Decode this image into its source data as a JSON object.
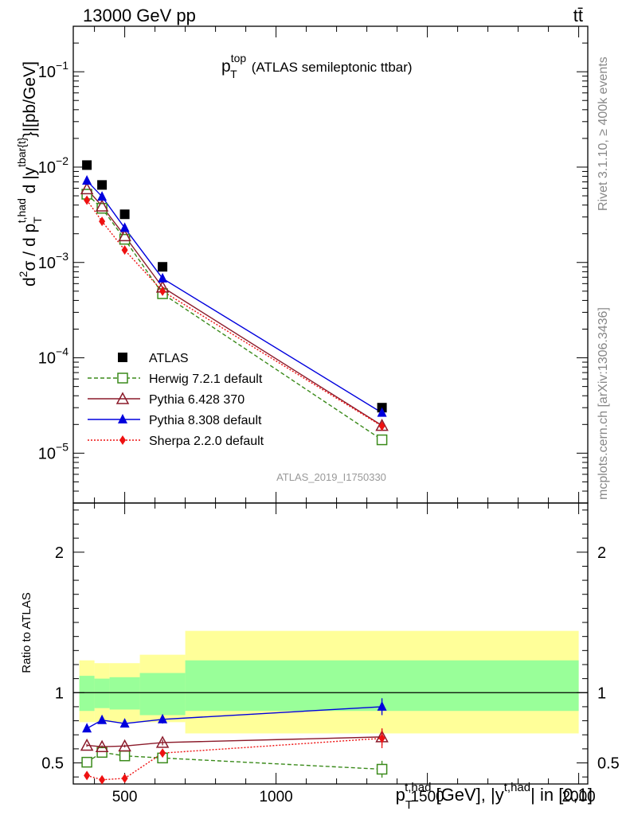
{
  "header": {
    "energy": "13000 GeV pp",
    "process": "tt̄"
  },
  "side_text": {
    "rivet": "Rivet 3.1.10, ≥ 400k events",
    "mcplots": "mcplots.cern.ch [arXiv:1306.3436]"
  },
  "chart_data": [
    {
      "type": "scatter",
      "title_main": "p",
      "title_sup": "top",
      "title_sub": "T",
      "title_rest": "(ATLAS semileptonic ttbar)",
      "ylabel": "d²σ / d p_T^{t,had} d |y^{tbar{t}}| [pb/GeV]",
      "ylabel_parts": [
        "d",
        "2",
        "σ  /  d p",
        "T",
        "t,had",
        " d |y",
        "tbar{t}",
        "}|[pb/GeV]"
      ],
      "yscale": "log",
      "ylim": [
        3e-06,
        0.3
      ],
      "xlim": [
        330,
        2030
      ],
      "ytick_labels": [
        {
          "base": "10",
          "exp": "−1",
          "value": 0.1
        },
        {
          "base": "10",
          "exp": "−2",
          "value": 0.01
        },
        {
          "base": "10",
          "exp": "−3",
          "value": 0.001
        },
        {
          "base": "10",
          "exp": "−4",
          "value": 0.0001
        },
        {
          "base": "10",
          "exp": "−5",
          "value": 1e-05
        }
      ],
      "analysis_id": "ATLAS_2019_I1750330",
      "legend_position": "bottom-left",
      "series": [
        {
          "name": "ATLAS",
          "color": "#000000",
          "marker": "square-filled",
          "line": "none",
          "x": [
            375,
            425,
            500,
            625,
            1350
          ],
          "y": [
            0.0105,
            0.0065,
            0.0032,
            0.0009,
            3e-05
          ]
        },
        {
          "name": "Herwig 7.2.1 default",
          "color": "#3a8a1a",
          "marker": "square-open",
          "line": "dashed",
          "x": [
            375,
            425,
            500,
            625,
            1350
          ],
          "y": [
            0.0052,
            0.0037,
            0.00175,
            0.00047,
            1.38e-05
          ]
        },
        {
          "name": "Pythia 6.428 370",
          "color": "#8b1a2a",
          "marker": "triangle-open",
          "line": "solid",
          "x": [
            375,
            425,
            500,
            625,
            1350
          ],
          "y": [
            0.0059,
            0.0039,
            0.0019,
            0.00055,
            1.95e-05
          ]
        },
        {
          "name": "Pythia 8.308 default",
          "color": "#0000dd",
          "marker": "triangle-filled",
          "line": "solid",
          "x": [
            375,
            425,
            500,
            625,
            1350
          ],
          "y": [
            0.0072,
            0.0049,
            0.0023,
            0.00068,
            2.65e-05
          ]
        },
        {
          "name": "Sherpa 2.2.0 default",
          "color": "#ee1111",
          "marker": "diamond-filled",
          "line": "dotted",
          "x": [
            375,
            425,
            500,
            625,
            1350
          ],
          "y": [
            0.0045,
            0.0027,
            0.00135,
            0.0005,
            1.92e-05
          ]
        }
      ]
    },
    {
      "type": "scatter",
      "ylabel": "Ratio to ATLAS",
      "xlabel_parts": [
        "p",
        "T",
        "t,had",
        " [GeV], |y",
        "t,had",
        "| in [0,1]"
      ],
      "xlabel": "p_T^{t,had} [GeV], |y^{t,had}| in [0,1]",
      "ylim": [
        0.35,
        2.35
      ],
      "xlim": [
        330,
        2030
      ],
      "yticks": [
        0.5,
        1,
        2
      ],
      "ytick_labels": [
        "0.5",
        "1",
        "2"
      ],
      "xticks": [
        500,
        1000,
        1500,
        2000
      ],
      "xtick_labels": [
        "500",
        "1000",
        "1500",
        "2000"
      ],
      "reference_line": 1,
      "bands": [
        {
          "x0": 350,
          "x1": 400,
          "green": [
            0.87,
            1.12
          ],
          "yellow": [
            0.79,
            1.23
          ]
        },
        {
          "x0": 400,
          "x1": 450,
          "green": [
            0.89,
            1.1
          ],
          "yellow": [
            0.79,
            1.21
          ]
        },
        {
          "x0": 450,
          "x1": 550,
          "green": [
            0.88,
            1.11
          ],
          "yellow": [
            0.79,
            1.21
          ]
        },
        {
          "x0": 550,
          "x1": 700,
          "green": [
            0.84,
            1.14
          ],
          "yellow": [
            0.79,
            1.27
          ]
        },
        {
          "x0": 700,
          "x1": 2000,
          "green": [
            0.87,
            1.23
          ],
          "yellow": [
            0.71,
            1.44
          ]
        }
      ],
      "series": [
        {
          "name": "Herwig 7.2.1 default",
          "color": "#3a8a1a",
          "marker": "square-open",
          "line": "dashed",
          "x": [
            375,
            425,
            500,
            625,
            1350
          ],
          "y": [
            0.505,
            0.575,
            0.55,
            0.535,
            0.455
          ],
          "err": [
            0.01,
            0.015,
            0.01,
            0.03,
            0.06
          ]
        },
        {
          "name": "Pythia 6.428 370",
          "color": "#8b1a2a",
          "marker": "triangle-open",
          "line": "solid",
          "x": [
            375,
            425,
            500,
            625,
            1350
          ],
          "y": [
            0.625,
            0.615,
            0.62,
            0.645,
            0.685
          ],
          "err": [
            0.01,
            0.01,
            0.01,
            0.02,
            0.06
          ]
        },
        {
          "name": "Pythia 8.308 default",
          "color": "#0000dd",
          "marker": "triangle-filled",
          "line": "solid",
          "x": [
            375,
            425,
            500,
            625,
            1350
          ],
          "y": [
            0.745,
            0.805,
            0.78,
            0.81,
            0.9
          ],
          "err": [
            0.01,
            0.015,
            0.02,
            0.03,
            0.06
          ]
        },
        {
          "name": "Sherpa 2.2.0 default",
          "color": "#ee1111",
          "marker": "diamond-filled",
          "line": "dotted",
          "x": [
            375,
            425,
            500,
            625,
            1350
          ],
          "y": [
            0.41,
            0.38,
            0.39,
            0.57,
            0.675
          ],
          "err": [
            0.015,
            0.015,
            0.02,
            0.02,
            0.07
          ]
        }
      ]
    }
  ]
}
